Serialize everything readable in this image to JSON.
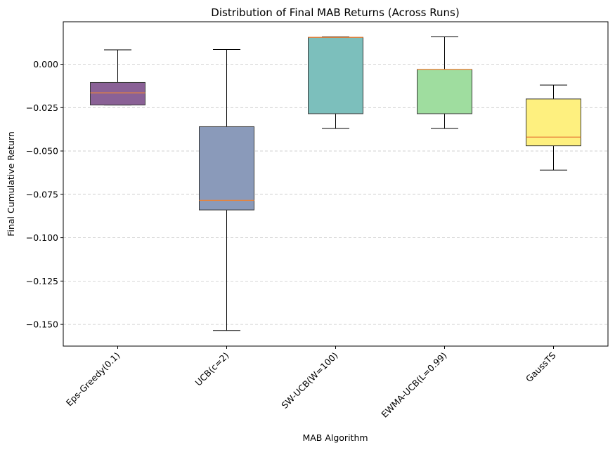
{
  "chart_data": {
    "type": "box",
    "title": "Distribution of Final MAB Returns (Across Runs)",
    "xlabel": "MAB Algorithm",
    "ylabel": "Final Cumulative Return",
    "ylim": [
      -0.1625,
      0.0245
    ],
    "yticks": [
      0.0,
      -0.025,
      -0.05,
      -0.075,
      -0.1,
      -0.125,
      -0.15
    ],
    "ytick_labels": [
      "0.000",
      "−0.025",
      "−0.050",
      "−0.075",
      "−0.100",
      "−0.125",
      "−0.150"
    ],
    "grid": {
      "y": true,
      "x": false,
      "style": "dashed"
    },
    "categories": [
      "Eps-Greedy(0.1)",
      "UCB(c=2)",
      "SW-UCB(W=100)",
      "EWMA-UCB(L=0.99)",
      "GaussTS"
    ],
    "boxes": [
      {
        "whisker_low": -0.0235,
        "q1": -0.0235,
        "median": -0.0165,
        "q3": -0.0105,
        "whisker_high": 0.0083,
        "color": "#8a6196"
      },
      {
        "whisker_low": -0.1535,
        "q1": -0.084,
        "median": -0.0785,
        "q3": -0.036,
        "whisker_high": 0.0085,
        "color": "#8a9aba"
      },
      {
        "whisker_low": -0.037,
        "q1": -0.0285,
        "median": 0.0155,
        "q3": 0.0155,
        "whisker_high": 0.0158,
        "color": "#7cbfbc"
      },
      {
        "whisker_low": -0.037,
        "q1": -0.0285,
        "median": -0.003,
        "q3": -0.003,
        "whisker_high": 0.0158,
        "color": "#9fdd9f"
      },
      {
        "whisker_low": -0.061,
        "q1": -0.047,
        "median": -0.042,
        "q3": -0.02,
        "whisker_high": -0.012,
        "color": "#fef07f"
      }
    ],
    "median_color": "#e8833a"
  }
}
